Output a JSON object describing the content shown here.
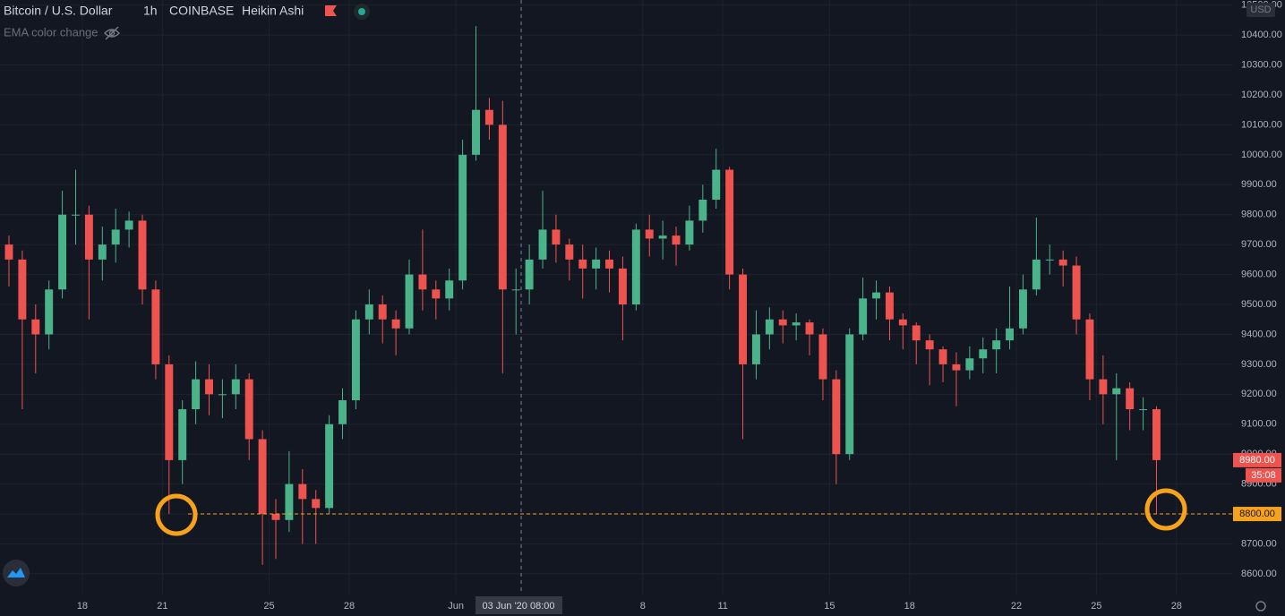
{
  "chart_data": {
    "type": "candlestick",
    "title": "Bitcoin / U.S. Dollar",
    "interval": "1h",
    "exchange": "COINBASE",
    "style": "Heikin Ashi",
    "indicator": "EMA color change",
    "currency": "USD",
    "up_color": "#4bb38a",
    "down_color": "#ef5350",
    "grid": true,
    "open": [
      9700,
      9650,
      9450,
      9400,
      9550,
      9800,
      9800,
      9650,
      9700,
      9750,
      9780,
      9550,
      9300,
      8980,
      9150,
      9250,
      9200,
      9200,
      9250,
      9050,
      8800,
      8780,
      8900,
      8850,
      8820,
      9100,
      9180,
      9450,
      9500,
      9450,
      9420,
      9600,
      9550,
      9520,
      9580,
      10000,
      10150,
      10100,
      9550,
      9550,
      9650,
      9750,
      9700,
      9650,
      9620,
      9650,
      9620,
      9500,
      9750,
      9720,
      9730,
      9700,
      9780,
      9850,
      9950,
      9600,
      9300,
      9400,
      9450,
      9430,
      9440,
      9400,
      9250,
      9000,
      9400,
      9520,
      9540,
      9450,
      9430,
      9380,
      9350,
      9300,
      9280,
      9320,
      9350,
      9380,
      9420,
      9550,
      9650,
      9650,
      9630,
      9450,
      9250,
      9200,
      9220,
      9150,
      9150
    ],
    "high": [
      9730,
      9680,
      9500,
      9580,
      9880,
      9950,
      9830,
      9760,
      9820,
      9810,
      9800,
      9580,
      9330,
      9180,
      9310,
      9300,
      9250,
      9300,
      9270,
      9080,
      8850,
      9010,
      8950,
      8880,
      9130,
      9220,
      9480,
      9550,
      9530,
      9480,
      9650,
      9750,
      9580,
      9620,
      10050,
      10430,
      10190,
      10180,
      9620,
      9700,
      9880,
      9800,
      9720,
      9700,
      9690,
      9680,
      9660,
      9770,
      9800,
      9780,
      9760,
      9830,
      9900,
      10020,
      9960,
      9620,
      9480,
      9490,
      9480,
      9470,
      9450,
      9420,
      9280,
      9420,
      9590,
      9580,
      9560,
      9470,
      9440,
      9400,
      9360,
      9340,
      9360,
      9390,
      9420,
      9560,
      9600,
      9790,
      9700,
      9680,
      9660,
      9470,
      9330,
      9270,
      9240,
      9190,
      9160
    ],
    "low": [
      9560,
      9150,
      9270,
      9350,
      9520,
      9700,
      9450,
      9580,
      9640,
      9690,
      9500,
      9250,
      8800,
      8900,
      9100,
      9130,
      9120,
      9150,
      8980,
      8630,
      8650,
      8740,
      8700,
      8700,
      8800,
      9050,
      9150,
      9400,
      9370,
      9330,
      9400,
      9480,
      9450,
      9480,
      9550,
      9980,
      10050,
      9270,
      9400,
      9500,
      9620,
      9640,
      9580,
      9520,
      9550,
      9540,
      9380,
      9480,
      9660,
      9650,
      9630,
      9680,
      9740,
      9820,
      9550,
      9050,
      9250,
      9350,
      9370,
      9380,
      9330,
      9180,
      8900,
      8980,
      9380,
      9450,
      9380,
      9350,
      9300,
      9230,
      9240,
      9160,
      9250,
      9270,
      9270,
      9350,
      9400,
      9530,
      9600,
      9560,
      9400,
      9180,
      9100,
      8980,
      9080,
      9080,
      8800
    ],
    "close": [
      9650,
      9450,
      9400,
      9550,
      9800,
      9800,
      9650,
      9700,
      9750,
      9780,
      9550,
      9300,
      8980,
      9150,
      9250,
      9200,
      9200,
      9250,
      9050,
      8800,
      8780,
      8900,
      8850,
      8820,
      9100,
      9180,
      9450,
      9500,
      9450,
      9420,
      9600,
      9550,
      9520,
      9580,
      10000,
      10150,
      10100,
      9550,
      9550,
      9650,
      9750,
      9700,
      9650,
      9620,
      9650,
      9620,
      9500,
      9750,
      9720,
      9730,
      9700,
      9780,
      9850,
      9950,
      9600,
      9300,
      9400,
      9450,
      9430,
      9440,
      9400,
      9250,
      9000,
      9400,
      9520,
      9540,
      9450,
      9430,
      9380,
      9350,
      9300,
      9280,
      9320,
      9350,
      9380,
      9420,
      9550,
      9650,
      9650,
      9630,
      9450,
      9250,
      9200,
      9220,
      9150,
      9150,
      8980
    ],
    "xlim": [
      -0.67,
      91.74
    ],
    "xticks": [
      {
        "value": 5.5,
        "label": "18"
      },
      {
        "value": 11.5,
        "label": "21"
      },
      {
        "value": 19.5,
        "label": "25"
      },
      {
        "value": 25.5,
        "label": "28"
      },
      {
        "value": 33.5,
        "label": "Jun"
      },
      {
        "value": 47.5,
        "label": "8"
      },
      {
        "value": 53.5,
        "label": "11"
      },
      {
        "value": 61.5,
        "label": "15"
      },
      {
        "value": 67.5,
        "label": "18"
      },
      {
        "value": 75.5,
        "label": "22"
      },
      {
        "value": 81.5,
        "label": "25"
      },
      {
        "value": 87.5,
        "label": "28"
      }
    ],
    "ylim": [
      8531,
      10517
    ],
    "yticks": [
      {
        "value": 8600,
        "label": "8600.00"
      },
      {
        "value": 8700,
        "label": "8700.00"
      },
      {
        "value": 8800,
        "label": "8800.00"
      },
      {
        "value": 8900,
        "label": "8900.00"
      },
      {
        "value": 9000,
        "label": "9000.00"
      },
      {
        "value": 9100,
        "label": "9100.00"
      },
      {
        "value": 9200,
        "label": "9200.00"
      },
      {
        "value": 9300,
        "label": "9300.00"
      },
      {
        "value": 9400,
        "label": "9400.00"
      },
      {
        "value": 9500,
        "label": "9500.00"
      },
      {
        "value": 9600,
        "label": "9600.00"
      },
      {
        "value": 9700,
        "label": "9700.00"
      },
      {
        "value": 9800,
        "label": "9800.00"
      },
      {
        "value": 9900,
        "label": "9900.00"
      },
      {
        "value": 10000,
        "label": "10000.00"
      },
      {
        "value": 10100,
        "label": "10100.00"
      },
      {
        "value": 10200,
        "label": "10200.00"
      },
      {
        "value": 10300,
        "label": "10300.00"
      },
      {
        "value": 10400,
        "label": "10400.00"
      },
      {
        "value": 10500,
        "label": "10500.00"
      }
    ],
    "hline": {
      "value": 8800,
      "label": "8800.00",
      "color": "#f7a21b"
    },
    "last_price": {
      "value": 8980,
      "label": "8980.00",
      "countdown": "35:08",
      "color": "#ef5350"
    },
    "crosshair_label": "03 Jun '20  08:00"
  }
}
